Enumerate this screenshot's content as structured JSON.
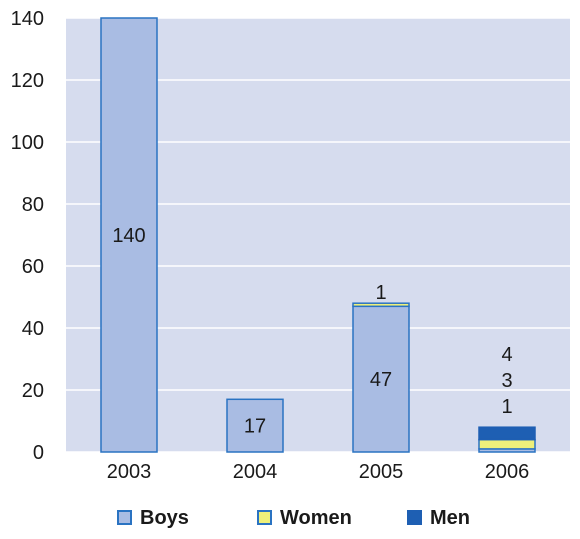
{
  "chart_data": {
    "type": "bar",
    "stacked": true,
    "title": "",
    "xlabel": "",
    "ylabel": "",
    "categories": [
      "2003",
      "2004",
      "2005",
      "2006"
    ],
    "series": [
      {
        "name": "Boys",
        "values": [
          140,
          17,
          47,
          1
        ],
        "color": "#a9bce3",
        "stroke": "#2a73c2"
      },
      {
        "name": "Women",
        "values": [
          0,
          0,
          1,
          3
        ],
        "color": "#eef07a",
        "stroke": "#2a73c2"
      },
      {
        "name": "Men",
        "values": [
          0,
          0,
          0,
          4
        ],
        "color": "#1e5fb3",
        "stroke": "#1e5fb3"
      }
    ],
    "data_labels": [
      {
        "category": "2003",
        "series": "Boys",
        "text": "140",
        "place": "inside"
      },
      {
        "category": "2004",
        "series": "Boys",
        "text": "17",
        "place": "inside"
      },
      {
        "category": "2005",
        "series": "Boys",
        "text": "47",
        "place": "inside"
      },
      {
        "category": "2005",
        "series": "Women",
        "text": "1",
        "place": "above"
      },
      {
        "category": "2006",
        "series": "Men",
        "text": "4",
        "place": "stack-above"
      },
      {
        "category": "2006",
        "series": "Women",
        "text": "3",
        "place": "stack-above"
      },
      {
        "category": "2006",
        "series": "Boys",
        "text": "1",
        "place": "stack-above"
      }
    ],
    "ylim": [
      0,
      140
    ],
    "yticks": [
      "0",
      "20",
      "40",
      "60",
      "80",
      "100",
      "120",
      "140"
    ],
    "grid": true,
    "plot_background": "#d6dcee",
    "legend_position": "bottom"
  }
}
